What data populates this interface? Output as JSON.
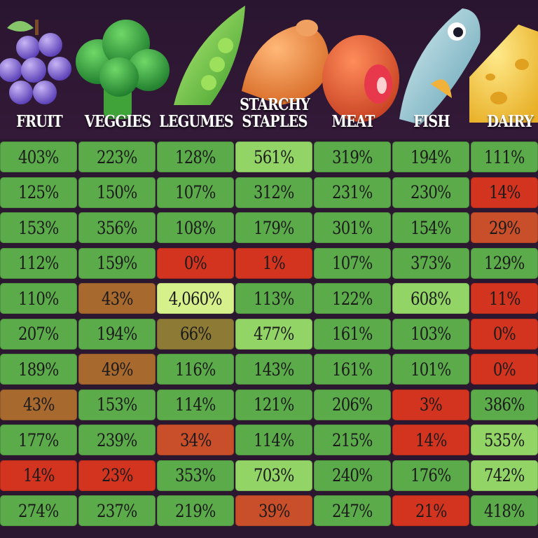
{
  "chart_data": {
    "type": "table",
    "columns": [
      "FRUIT",
      "VEGGIES",
      "LEGUMES",
      "STARCHY STAPLES",
      "MEAT",
      "FISH",
      "DAIRY"
    ],
    "rows": [
      [
        "403%",
        "223%",
        "128%",
        "561%",
        "319%",
        "194%",
        "111%"
      ],
      [
        "125%",
        "150%",
        "107%",
        "312%",
        "231%",
        "230%",
        "14%"
      ],
      [
        "153%",
        "356%",
        "108%",
        "179%",
        "301%",
        "154%",
        "29%"
      ],
      [
        "112%",
        "159%",
        "0%",
        "1%",
        "107%",
        "373%",
        "129%"
      ],
      [
        "110%",
        "43%",
        "4,060%",
        "113%",
        "122%",
        "608%",
        "11%"
      ],
      [
        "207%",
        "194%",
        "66%",
        "477%",
        "161%",
        "103%",
        "0%"
      ],
      [
        "189%",
        "49%",
        "116%",
        "143%",
        "161%",
        "101%",
        "0%"
      ],
      [
        "43%",
        "153%",
        "114%",
        "121%",
        "206%",
        "3%",
        "386%"
      ],
      [
        "177%",
        "239%",
        "34%",
        "114%",
        "215%",
        "14%",
        "535%"
      ],
      [
        "14%",
        "23%",
        "353%",
        "703%",
        "240%",
        "176%",
        "742%"
      ],
      [
        "274%",
        "237%",
        "219%",
        "39%",
        "247%",
        "21%",
        "418%"
      ]
    ],
    "colors": {
      "very_low": "#d2341f",
      "low": "#c84f2a",
      "mid_low": "#a8692f",
      "olive": "#8d7b35",
      "good": "#5cab4a",
      "high": "#92d466",
      "very_high": "#d6f08c"
    }
  }
}
